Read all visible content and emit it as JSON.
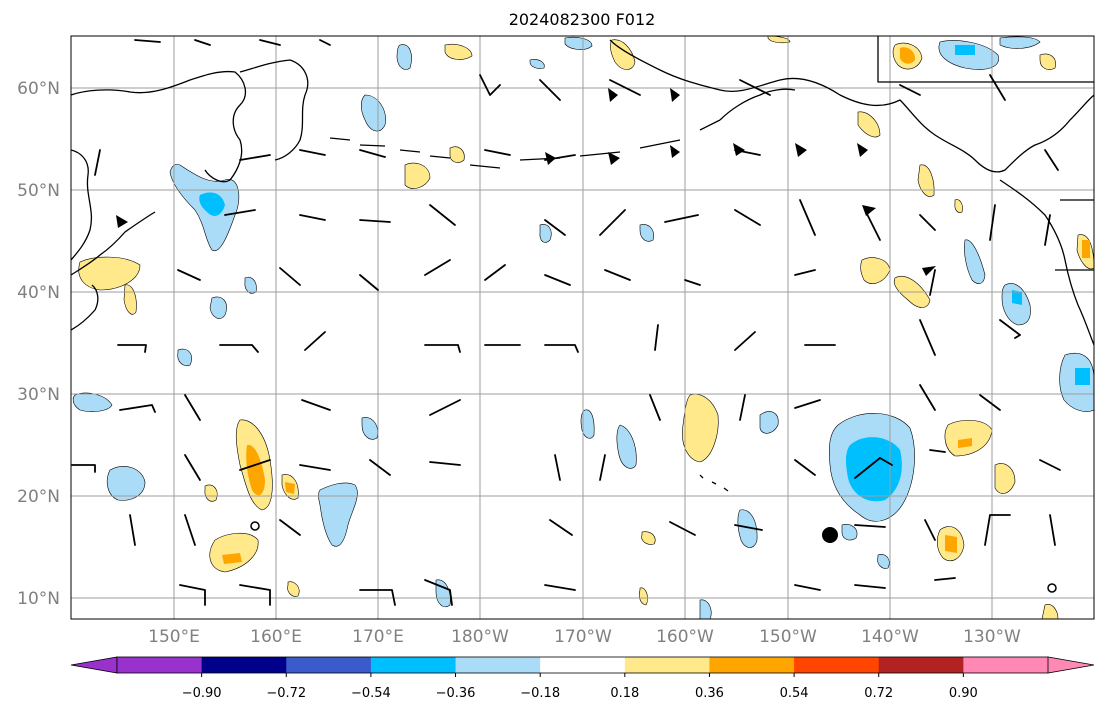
{
  "title": "2024082300 F012",
  "latitude_labels": [
    "60°N",
    "50°N",
    "40°N",
    "30°N",
    "20°N",
    "10°N"
  ],
  "longitude_labels": [
    "150°E",
    "160°E",
    "170°E",
    "180°W",
    "170°W",
    "160°W",
    "150°W",
    "140°W",
    "130°W"
  ],
  "colorbar": {
    "tick_labels": [
      "−0.90",
      "−0.72",
      "−0.54",
      "−0.36",
      "−0.18",
      "0.18",
      "0.36",
      "0.54",
      "0.72",
      "0.90"
    ],
    "colors": [
      "#9932cc",
      "#00008b",
      "#3b5bcc",
      "#00bfff",
      "#aadcf8",
      "#ffffff",
      "#ffe98a",
      "#ffa500",
      "#ff4500",
      "#b22222",
      "#ff88b4"
    ]
  },
  "colors": {
    "light_blue": "#aadcf8",
    "deep_sky_blue": "#00bfff",
    "light_yellow": "#ffe98a",
    "orange": "#ffa500",
    "grid": "#9e9e9e",
    "axis_label": "#808080"
  }
}
